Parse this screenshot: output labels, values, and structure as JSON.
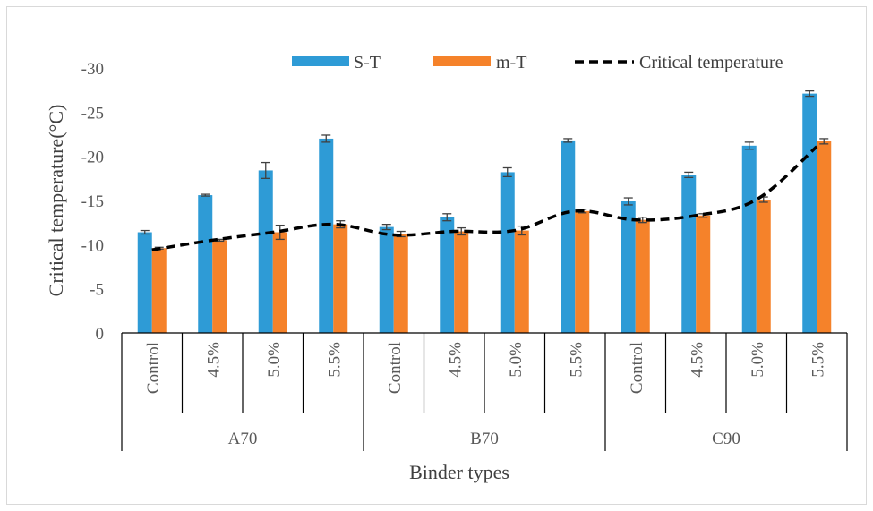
{
  "chart_data": {
    "type": "bar",
    "ylabel": "Critical temperature(°C)",
    "xlabel": "Binder types",
    "ylim": [
      0,
      -30
    ],
    "y_ticks": [
      0,
      -5,
      -10,
      -15,
      -20,
      -25,
      -30
    ],
    "y_tick_labels": [
      "0",
      "-5",
      "-10",
      "-15",
      "-20",
      "-25",
      "-30"
    ],
    "groups": [
      {
        "name": "A70",
        "categories": [
          "Control",
          "4.5%",
          "5.0%",
          "5.5%"
        ]
      },
      {
        "name": "B70",
        "categories": [
          "Control",
          "4.5%",
          "5.0%",
          "5.5%"
        ]
      },
      {
        "name": "C90",
        "categories": [
          "Control",
          "4.5%",
          "5.0%",
          "5.5%"
        ]
      }
    ],
    "series": [
      {
        "name": "S-T",
        "kind": "bar",
        "color": "#2e9bd6",
        "values": [
          -11.4,
          -15.6,
          -18.4,
          -22.0,
          -12.0,
          -13.1,
          -18.2,
          -21.8,
          -14.9,
          -17.9,
          -21.2,
          -27.1
        ],
        "errors": [
          0.2,
          0.1,
          0.9,
          0.4,
          0.3,
          0.4,
          0.5,
          0.2,
          0.4,
          0.3,
          0.4,
          0.3
        ]
      },
      {
        "name": "m-T",
        "kind": "bar",
        "color": "#f5822a",
        "values": [
          -9.6,
          -10.5,
          -11.4,
          -12.3,
          -11.2,
          -11.5,
          -11.6,
          -13.8,
          -12.8,
          -13.3,
          -15.1,
          -21.7
        ],
        "errors": [
          0.1,
          0.1,
          0.8,
          0.4,
          0.3,
          0.4,
          0.5,
          0.2,
          0.3,
          0.2,
          0.3,
          0.3
        ]
      },
      {
        "name": "Critical temperature",
        "kind": "line",
        "style": "dashed",
        "color": "#000000",
        "values": [
          -9.4,
          -10.5,
          -11.4,
          -12.3,
          -11.1,
          -11.5,
          -11.6,
          -13.8,
          -12.8,
          -13.3,
          -15.1,
          -21.1
        ]
      }
    ],
    "legend": {
      "position": "top",
      "labels": [
        "S-T",
        "m-T",
        "Critical temperature"
      ]
    },
    "grid": false
  }
}
